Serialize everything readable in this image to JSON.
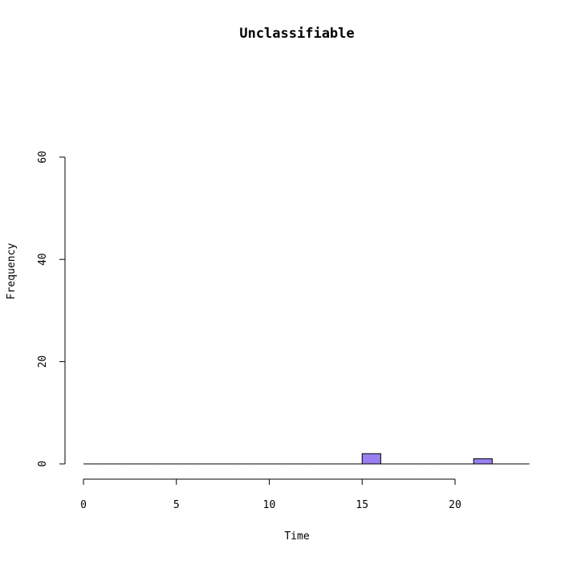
{
  "chart_data": {
    "type": "bar",
    "title": "Unclassifiable",
    "xlabel": "Time",
    "ylabel": "Frequency",
    "bin_width": 1,
    "bins": [
      {
        "start": 0,
        "end": 1,
        "count": 0
      },
      {
        "start": 1,
        "end": 2,
        "count": 0
      },
      {
        "start": 2,
        "end": 3,
        "count": 0
      },
      {
        "start": 3,
        "end": 4,
        "count": 0
      },
      {
        "start": 4,
        "end": 5,
        "count": 0
      },
      {
        "start": 5,
        "end": 6,
        "count": 0
      },
      {
        "start": 6,
        "end": 7,
        "count": 0
      },
      {
        "start": 7,
        "end": 8,
        "count": 0
      },
      {
        "start": 8,
        "end": 9,
        "count": 0
      },
      {
        "start": 9,
        "end": 10,
        "count": 0
      },
      {
        "start": 10,
        "end": 11,
        "count": 0
      },
      {
        "start": 11,
        "end": 12,
        "count": 0
      },
      {
        "start": 12,
        "end": 13,
        "count": 0
      },
      {
        "start": 13,
        "end": 14,
        "count": 0
      },
      {
        "start": 14,
        "end": 15,
        "count": 0
      },
      {
        "start": 15,
        "end": 16,
        "count": 2
      },
      {
        "start": 16,
        "end": 17,
        "count": 0
      },
      {
        "start": 17,
        "end": 18,
        "count": 0
      },
      {
        "start": 18,
        "end": 19,
        "count": 0
      },
      {
        "start": 19,
        "end": 20,
        "count": 0
      },
      {
        "start": 20,
        "end": 21,
        "count": 0
      },
      {
        "start": 21,
        "end": 22,
        "count": 1
      },
      {
        "start": 22,
        "end": 23,
        "count": 0
      },
      {
        "start": 23,
        "end": 24,
        "count": 0
      }
    ],
    "xlim": [
      0,
      24
    ],
    "ylim": [
      0,
      60
    ],
    "x_ticks": [
      0,
      5,
      10,
      15,
      20
    ],
    "x_tick_labels": [
      "0",
      "5",
      "10",
      "15",
      "20"
    ],
    "y_ticks": [
      0,
      20,
      40,
      60
    ],
    "y_tick_labels": [
      "0",
      "20",
      "40",
      "60"
    ],
    "bar_color": "#9980f0",
    "bar_stroke": "#000000",
    "grid": false,
    "legend": "none"
  }
}
